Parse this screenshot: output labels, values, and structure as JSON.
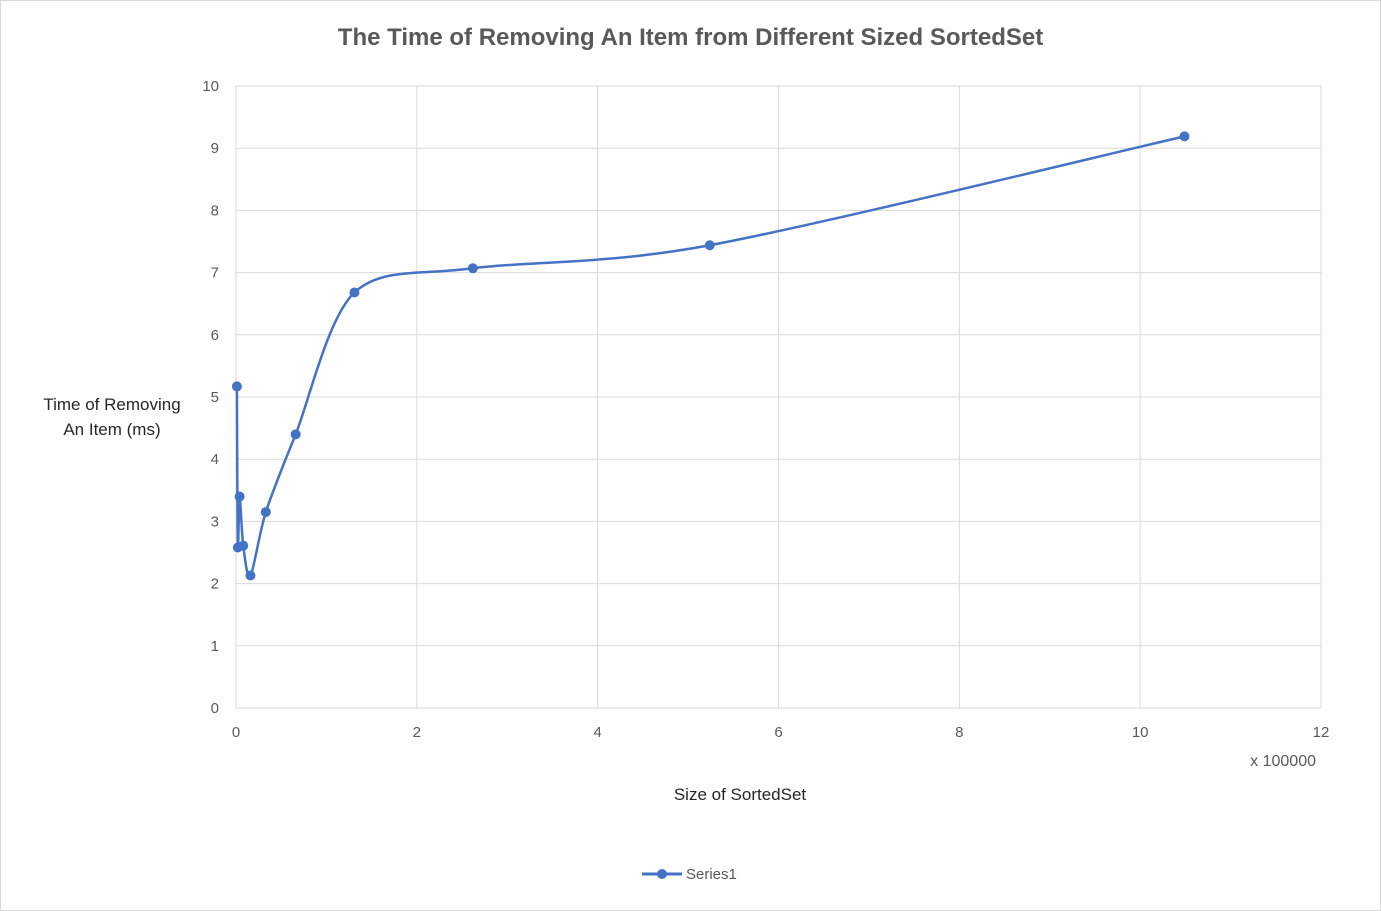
{
  "chart_data": {
    "type": "line",
    "title": "The Time of Removing An Item from Different Sized SortedSet",
    "xlabel": "Size of SortedSet",
    "x_unit_label": "x 100000",
    "ylabel_lines": [
      "Time of Removing",
      "An Item (ms)"
    ],
    "xlim": [
      0,
      12
    ],
    "ylim": [
      0,
      10
    ],
    "x_ticks": [
      "0",
      "2",
      "4",
      "6",
      "8",
      "10",
      "12"
    ],
    "y_ticks": [
      "0",
      "1",
      "2",
      "3",
      "4",
      "5",
      "6",
      "7",
      "8",
      "9",
      "10"
    ],
    "grid": true,
    "legend_position": "bottom",
    "smooth": true,
    "series": [
      {
        "name": "Series1",
        "color": "#4472c4",
        "points": [
          {
            "x": 0.01,
            "y": 5.17
          },
          {
            "x": 0.02,
            "y": 2.58
          },
          {
            "x": 0.04,
            "y": 3.4
          },
          {
            "x": 0.08,
            "y": 2.61
          },
          {
            "x": 0.16,
            "y": 2.13
          },
          {
            "x": 0.33,
            "y": 3.15
          },
          {
            "x": 0.66,
            "y": 4.4
          },
          {
            "x": 1.31,
            "y": 6.68
          },
          {
            "x": 2.62,
            "y": 7.07
          },
          {
            "x": 5.24,
            "y": 7.44
          },
          {
            "x": 10.49,
            "y": 9.19
          }
        ]
      }
    ]
  }
}
